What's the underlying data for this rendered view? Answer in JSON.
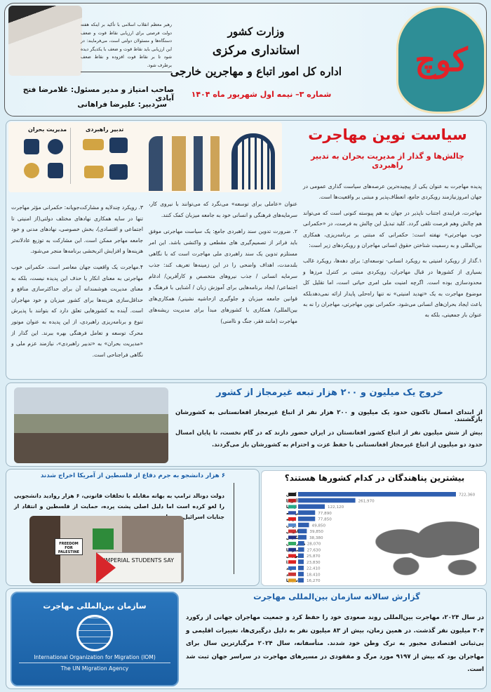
{
  "header": {
    "logo_text": "کوچ",
    "ministry_lines": [
      "وزارت کشور",
      "استانداری مرکزی",
      "اداره کل امور اتباع و مهاجرین خارجی"
    ],
    "issue": "شماره ۳– نیمه اول شهریور ماه ۱۴۰۴",
    "quote": "رهبر معظم انقلاب اسلامی با تأکید بر اینکه هفته دولت فرصتی برای ارزیابی نقاط قوت و ضعف دستگاه‌ها و مسئولان دولتی است، می‌فرمایند: در این ارزیابی باید نقاط قوت و ضعف با یکدیگر دیده شود تا بر نقاط قوت افزوده و نقاط ضعف برطرف شود.",
    "publisher": "صاحب امتیاز و مدیر مسئول: غلامرضا فتح آبادی",
    "editor": "سردبیر: علیرضا فراهانی"
  },
  "main_article": {
    "title": "سیاست نوین مهاجرت",
    "subtitle": "چالش‌ها و گذار از مدیریت بحران به تدبیر راهبردی",
    "infographic": {
      "left_label": "مدیریت بحران",
      "right_label": "تدبیر راهبردی"
    },
    "right_col": [
      "پدیده مهاجرت به عنوان یکی از پیچیده‌ترین عرصه‌های سیاست گذاری عمومی در جهان امروزنیازمند رویکردی جامع، انعطاف‌پذیر و مبتنی بر واقعیت‌ها است.",
      "مهاجرت، فرایندی اجتناب ناپذیر در جهان به هم پیوسته کنونی است که می‌تواند هم چالش وهم فرصت تلقی گردد. کلید تبدیل این چالش به فرصت، در «حکمرانی خوب مهاجرتی» نهفته است: حکمرانی که مبتنی بر برنامه‌ریزی، همکاری بین‌المللی و به رسمیت شناختن حقوق انسانی مهاجران و رویکردهای زیر است:",
      "۱.گذار از رویکرد امنیتی به رویکرد انسانی- توسعه‌ای: برای دهه‌ها، رویکرد غالب بسیاری از کشورها در قبال مهاجران، رویکردی مبتنی بر کنترل مرزها و محدودسازی بوده است. اگرچه امنیت ملی امری حیاتی است، اما تقلیل کل موضوع مهاجرت به یک «تهدید امنیتی» نه تنها راه‌حلی پایدار ارائه نمی‌دهدبلکه باعث ایجاد بحران‌های انسانی می‌شود. حکمرانی نوین مهاجرتی، مهاجران را نه به عنوان بار جمعیتی، بلکه به"
    ],
    "middle_col": [
      "عنوان «عاملی برای توسعه» می‌نگرد که می‌توانند با نیروی کار، سرمایه‌های فرهنگی و انسانی خود به جامعه میزبان کمک کنند.",
      "۲. ضرورت تدوین سند راهبردی جامع: یک سیاست مهاجرتی موفق باید فراتر از تصمیم‌گیری های مقطعی و واکنشی باشد. این امر مستلزم تدوین یک سند راهبردی ملی مهاجرت است که با نگاهی بلندمدت، اهداف واضحی را در این زمینه‌ها تعریف کند: جذب سرمایه انسانی / جذب نیروهای متخصص و کارآفرین/ ادغام اجتماعی/ ایجاد برنامه‌هایی برای آموزش زبان / آشنایی با فرهنگ و قوانین جامعه میزبان و جلوگیری ازحاشیه نشینی/ همکاری‌های بین‌المللی/ همکاری با کشورهای مبدأ برای مدیریت ریشه‌های مهاجرت (مانند فقر، جنگ و ناامنی)"
    ],
    "left_col": [
      "۳. رویکرد چندلایه و مشارکت‌جویانه: حکمرانی مؤثر مهاجرت تنها در سایه همکاری نهادهای مختلف دولتی(از امنیتی تا اجتماعی و اقتصادی)، بخش خصوصی، نهادهای مدنی و خود جامعه مهاجر ممکن است. این مشارکت به توزیع عادلانه‌تر هزینه‌ها و افزایش اثربخشی برنامه‌ها منجر می‌شود.",
      "۴.مهاجرت یک واقعیت جهان معاصر است. حکمرانی خوب مهاجرتی به معنای انکار یا حذف این پدیده نیست، بلکه به معنای مدیریت هوشمندانه آن برای حداکثرسازی منافع و حداقل‌سازی هزینه‌ها برای کشور میزبان و خود مهاجران است. آینده به کشورهایی تعلق دارد که بتوانند با پذیرش تنوع و برنامه‌ریزی راهبردی، از این پدیده به عنوان موتور محرک توسعه و تعامل فرهنگی بهره ببرند. این گذار از «مدیریت بحران» به «تدبیر راهبردی»، نیازمند عزم ملی و نگاهی فراجناحی است."
    ]
  },
  "exodus": {
    "title": "خروج یک میلیون و ۲۰۰ هزار تبعه غیرمجاز از کشور",
    "lead": "از ابتدای امسال تاکنون حدود یک میلیون و ۲۰۰ هزار نفر از اتباع غیرمجاز افغانستانی به کشورشان بازگشتند.",
    "body": "بیش از شش میلیون نفر از اتباع کشور افغانستان در ایران حضور دارند که در گام نخست، تا پایان امسال حدود دو میلیون از اتباع غیرمجاز افغانستانی با حفظ عزت و احترام به کشورشان باز می‌گردند."
  },
  "students": {
    "title": "۶ هزار دانشجو به جرم دفاع از فلسطین از آمریکا اخراج شدند",
    "body": "دولت دونالد ترامپ به بهانه مقابله با تخلفات قانونی، ۶ هزار روادید دانشجویی را لغو کرده است اما دلیل اصلی پشت پرده، حمایت از فلسطین و انتقاد از جنایات اسرائیل بوده است.",
    "photo_signs": [
      "FREEDOM FOR PALESTINE",
      "IMPERIAL STUDENTS SAY"
    ]
  },
  "chart_data": {
    "type": "bar",
    "title": "بیشترین پناهندگان در کدام کشورها هستند؟",
    "categories": [
      "آلمان",
      "آمریکا",
      "ایتالیا",
      "فرانسه",
      "ترکیه",
      "یونان",
      "اتریش",
      "انگلیس",
      "مجارستان",
      "استرالیا",
      "سوئیس",
      "کانادا",
      "سوئد",
      "هلند",
      "اسپانیا"
    ],
    "values": [
      722360,
      261970,
      122120,
      77890,
      77850,
      49850,
      39850,
      38380,
      28070,
      27630,
      25870,
      23830,
      22410,
      18410,
      16270
    ],
    "value_labels": [
      "722,360",
      "261,970",
      "122,120",
      "77,890",
      "77,850",
      "49,850",
      "39,850",
      "38,380",
      "28,070",
      "27,630",
      "25,870",
      "23,830",
      "22,410",
      "18,410",
      "16,270"
    ],
    "orientation": "horizontal",
    "bar_color": "#2f5fb0",
    "grid": false
  },
  "iom": {
    "name_fa": "سازمان بین‌المللی مهاجرت",
    "name_en": "International Organization for Migration (IOM)",
    "tagline": "The UN Migration Agency",
    "report_title": "گزارش سالانه سازمان بین‌المللی مهاجرت",
    "report_body": "در سال ۲۰۲۴، مهاجرت بین‌المللی روند صعودی خود را حفظ کرد و جمعیت مهاجران جهانی از رکورد ۳۰۴ میلیون نفر گذشت. در همین زمان، بیش از ۸۳ میلیون نفر به دلیل درگیری‌ها، تغییرات اقلیمی و بی‌ثباتی اقتصادی مجبور به ترک وطن خود شدند. متأسفانه، سال ۲۰۲۴ مرگبارترین سال برای مهاجران بود که بیش از ۹۱۹۷ مورد مرگ و مفقودی در مسیرهای مهاجرت در سراسر جهان ثبت شد است."
  },
  "colors": {
    "accent_red": "#d8141c",
    "accent_blue": "#1c5fa8",
    "navy": "#1f3a5f",
    "gold": "#d2a443",
    "background": "#dcedf5"
  }
}
